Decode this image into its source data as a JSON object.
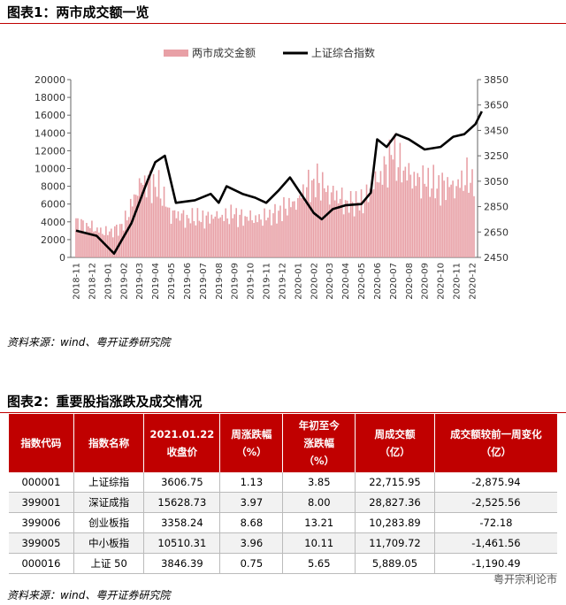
{
  "fig1_title": "图表1：两市成交额一览",
  "fig2_title": "图表2：重要股指涨跌及成交情况",
  "source1": "资料来源：wind、粤开证券研究院",
  "source2": "资料来源：wind、粤开证券研究院",
  "watermark": "粤开宗利论市",
  "colors": {
    "accent": "#c00000",
    "bar": "#e8a0a6",
    "line": "#000000"
  },
  "chart_data": {
    "type": "bar+line",
    "legend": [
      "两市成交金额",
      "上证综合指数"
    ],
    "legend_position": "top-center",
    "x_ticks": [
      "2018-11",
      "2018-12",
      "2019-01",
      "2019-02",
      "2019-03",
      "2019-04",
      "2019-05",
      "2019-06",
      "2019-07",
      "2019-08",
      "2019-09",
      "2019-10",
      "2019-11",
      "2019-12",
      "2020-01",
      "2020-02",
      "2020-03",
      "2020-04",
      "2020-05",
      "2020-06",
      "2020-07",
      "2020-08",
      "2020-09",
      "2020-10",
      "2020-11",
      "2020-12"
    ],
    "ylim_left": [
      0,
      20000
    ],
    "yticks_left": [
      "0",
      "2000",
      "4000",
      "6000",
      "8000",
      "10000",
      "12000",
      "14000",
      "16000",
      "18000",
      "20000"
    ],
    "ylim_right": [
      2450,
      3850
    ],
    "yticks_right": [
      "2450",
      "2650",
      "2850",
      "3050",
      "3250",
      "3450",
      "3650",
      "3850"
    ],
    "turnover_monthly_approx": [
      4000,
      3300,
      2700,
      3600,
      8300,
      8500,
      5000,
      4500,
      4400,
      4600,
      4700,
      4300,
      4400,
      5300,
      6500,
      8800,
      7500,
      6200,
      6100,
      8500,
      11500,
      9000,
      8500,
      8000,
      8200,
      9200
    ],
    "index_path": [
      [
        0,
        2660
      ],
      [
        1.3,
        2620
      ],
      [
        2.4,
        2480
      ],
      [
        3.5,
        2720
      ],
      [
        4.5,
        3050
      ],
      [
        5.0,
        3200
      ],
      [
        5.6,
        3250
      ],
      [
        6.3,
        2880
      ],
      [
        7.5,
        2900
      ],
      [
        8.5,
        2950
      ],
      [
        9.0,
        2880
      ],
      [
        9.5,
        3010
      ],
      [
        10.5,
        2950
      ],
      [
        11.3,
        2920
      ],
      [
        12.0,
        2880
      ],
      [
        12.8,
        2980
      ],
      [
        13.5,
        3080
      ],
      [
        14.3,
        2930
      ],
      [
        15.0,
        2800
      ],
      [
        15.5,
        2750
      ],
      [
        16.2,
        2830
      ],
      [
        17.0,
        2860
      ],
      [
        18.0,
        2870
      ],
      [
        18.6,
        2960
      ],
      [
        19.0,
        3380
      ],
      [
        19.6,
        3320
      ],
      [
        20.2,
        3420
      ],
      [
        21.0,
        3380
      ],
      [
        22.0,
        3300
      ],
      [
        23.0,
        3320
      ],
      [
        23.8,
        3400
      ],
      [
        24.5,
        3420
      ],
      [
        25.2,
        3500
      ],
      [
        25.6,
        3600
      ]
    ]
  },
  "table": {
    "headers": [
      "指数代码",
      "指数名称",
      "2021.01.22\n收盘价",
      "周涨跌幅\n（%）",
      "年初至今\n涨跌幅\n（%）",
      "周成交额\n（亿）",
      "成交额较前一周变化\n（亿）"
    ],
    "rows": [
      [
        "000001",
        "上证综指",
        "3606.75",
        "1.13",
        "3.85",
        "22,715.95",
        "-2,875.94"
      ],
      [
        "399001",
        "深证成指",
        "15628.73",
        "3.97",
        "8.00",
        "28,827.36",
        "-2,525.56"
      ],
      [
        "399006",
        "创业板指",
        "3358.24",
        "8.68",
        "13.21",
        "10,283.89",
        "-72.18"
      ],
      [
        "399005",
        "中小板指",
        "10510.31",
        "3.96",
        "10.11",
        "11,709.72",
        "-1,461.56"
      ],
      [
        "000016",
        "上证 50",
        "3846.39",
        "0.75",
        "5.65",
        "5,889.05",
        "-1,190.49"
      ]
    ]
  }
}
